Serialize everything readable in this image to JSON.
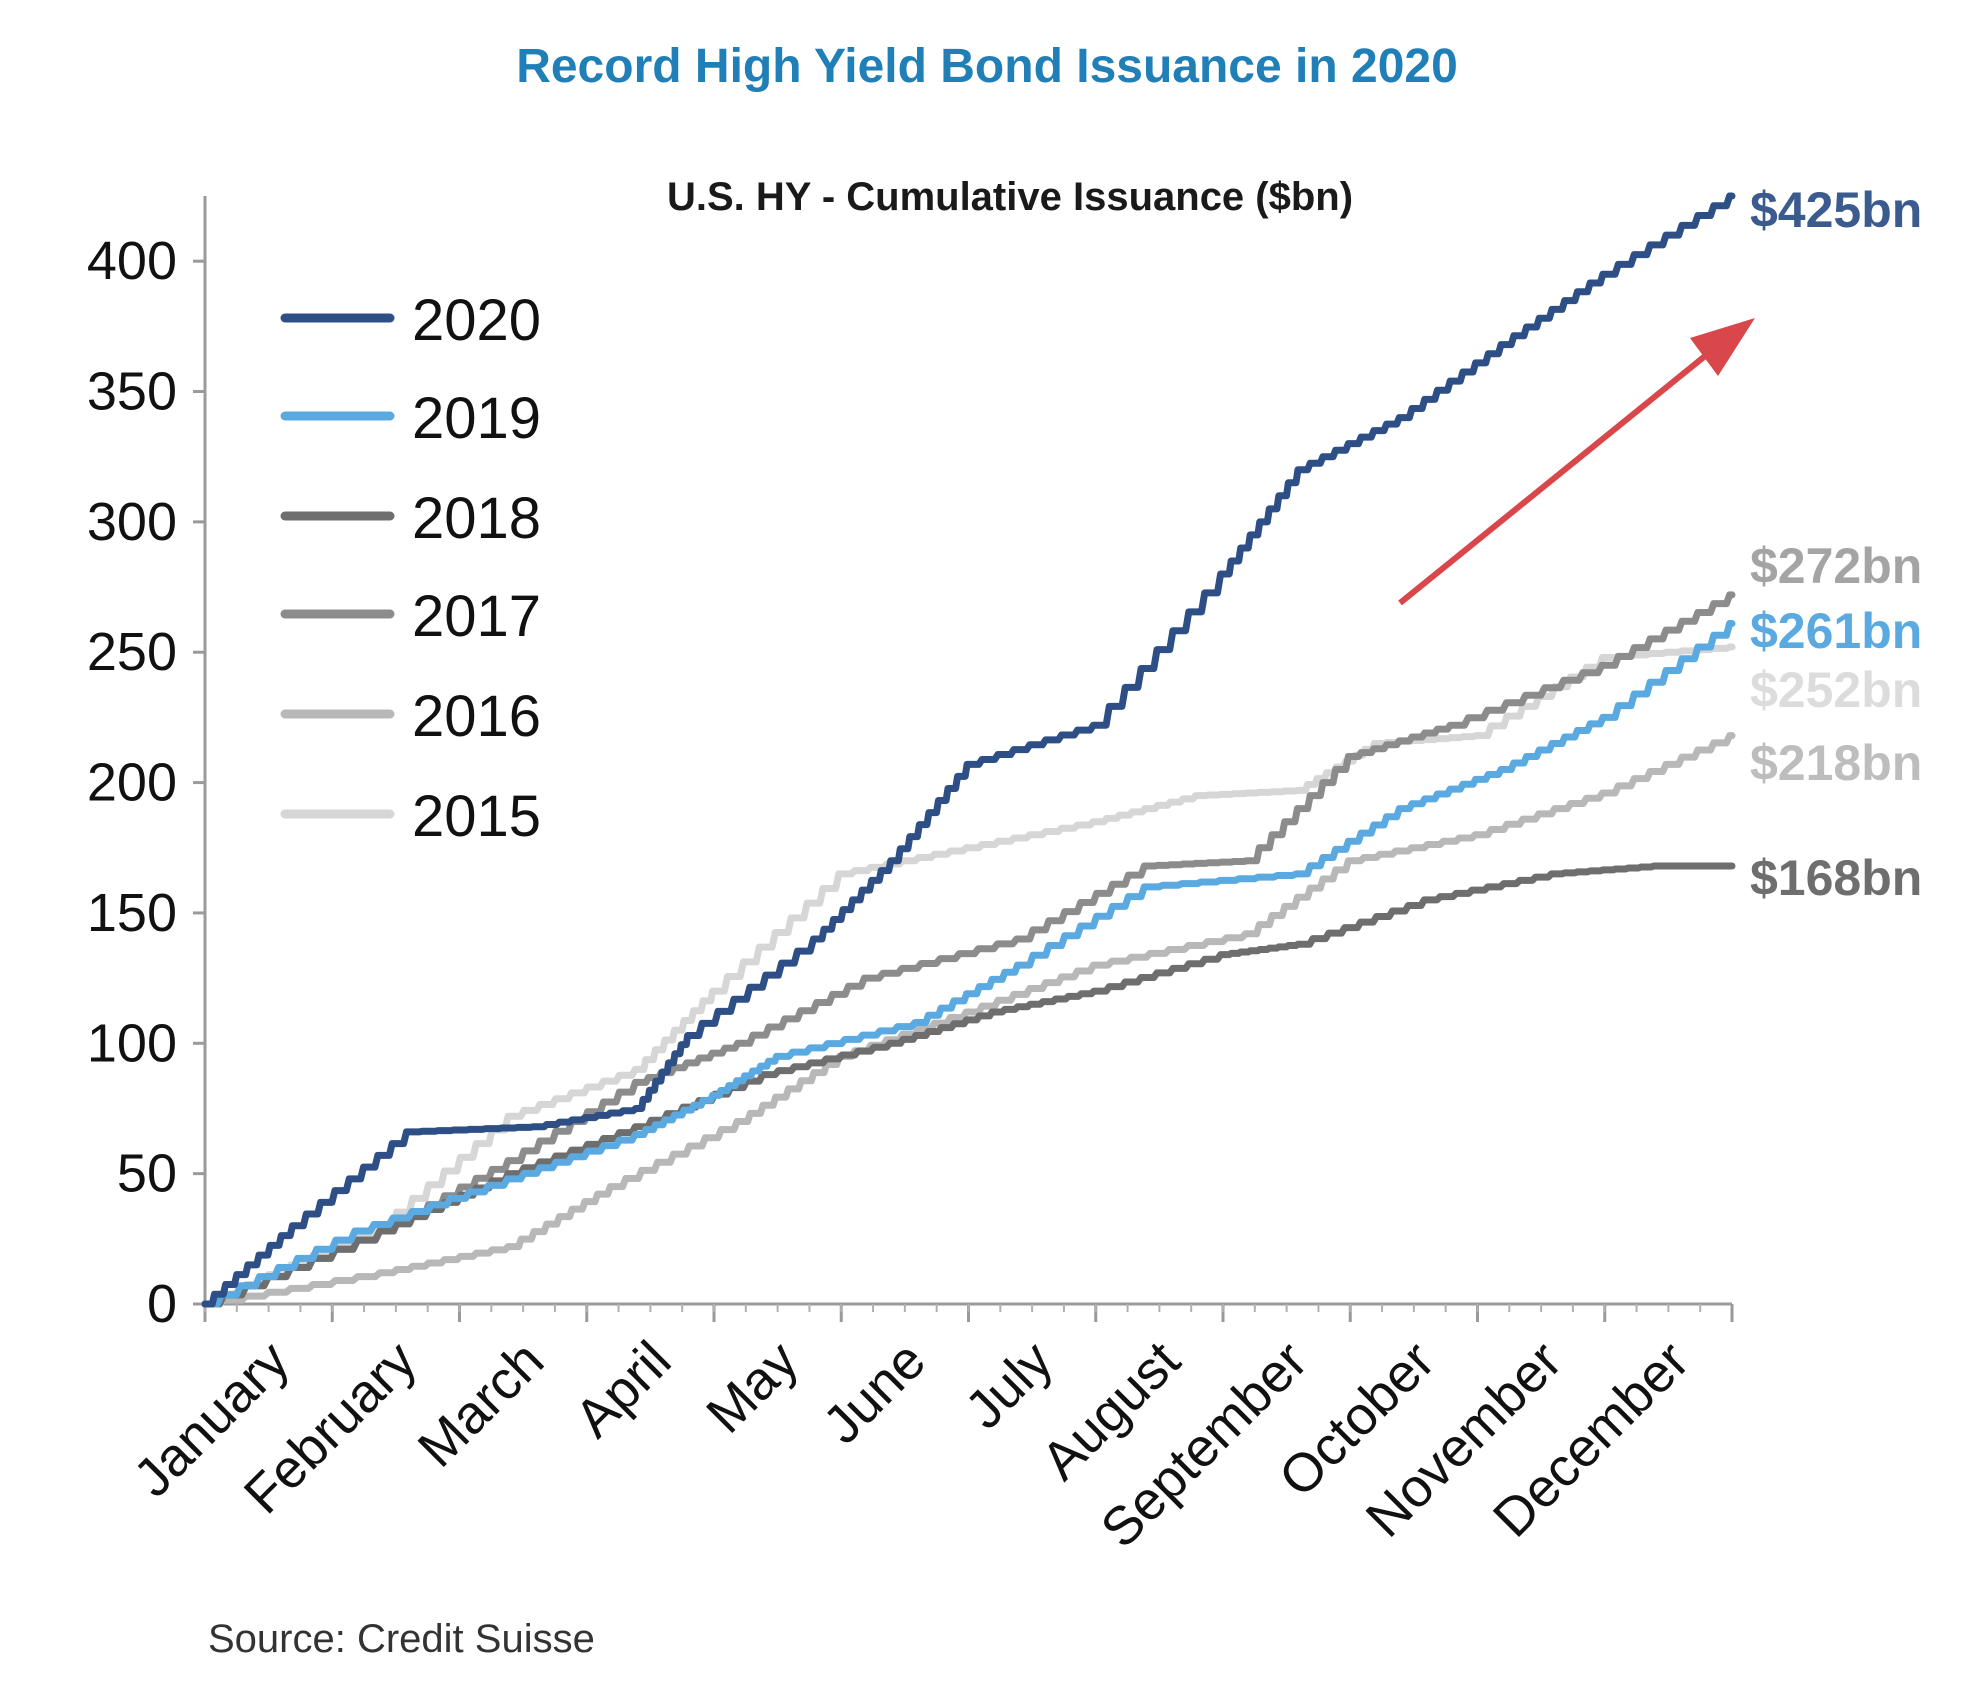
{
  "chart_data": {
    "type": "line",
    "title": "Record High Yield Bond Issuance in 2020",
    "subtitle": "U.S. HY - Cumulative Issuance ($bn)",
    "source": "Source: Credit Suisse",
    "xlabel": "",
    "ylabel": "",
    "ylim": [
      0,
      425
    ],
    "yticks": [
      0,
      50,
      100,
      150,
      200,
      250,
      300,
      350,
      400
    ],
    "categories": [
      "January",
      "February",
      "March",
      "April",
      "May",
      "June",
      "July",
      "August",
      "September",
      "October",
      "November",
      "December"
    ],
    "grid": false,
    "legend_position": "top-left",
    "annotation_arrow": "up-right red arrow",
    "series": [
      {
        "name": "2020",
        "color": "#2d4f86",
        "end_label": "$425bn",
        "values": [
          0,
          30,
          66,
          68,
          75,
          103,
          140,
          170,
          207,
          222,
          280,
          320,
          340,
          368,
          395,
          425
        ],
        "x": [
          0,
          0.7,
          1.6,
          2.6,
          3.4,
          3.8,
          4.8,
          5.4,
          6.0,
          7.0,
          8.0,
          8.6,
          9.4,
          10.2,
          11.0,
          12.0
        ]
      },
      {
        "name": "2019",
        "color": "#5aa9e0",
        "end_label": "$261bn",
        "values": [
          0,
          28,
          48,
          65,
          80,
          95,
          108,
          130,
          160,
          165,
          190,
          205,
          225,
          261
        ],
        "x": [
          0,
          1.2,
          2.4,
          3.4,
          4.0,
          4.5,
          5.6,
          6.4,
          7.4,
          8.6,
          9.4,
          10.2,
          11.0,
          12.0
        ]
      },
      {
        "name": "2018",
        "color": "#6e6e6e",
        "end_label": "$168bn",
        "values": [
          0,
          28,
          50,
          68,
          88,
          100,
          112,
          120,
          134,
          138,
          155,
          165,
          168,
          168
        ],
        "x": [
          0,
          1.4,
          2.4,
          3.4,
          4.4,
          5.4,
          6.2,
          7.0,
          8.0,
          8.6,
          9.6,
          10.6,
          11.4,
          12.0
        ]
      },
      {
        "name": "2017",
        "color": "#8c8c8c",
        "end_label": "$272bn",
        "values": [
          0,
          28,
          55,
          85,
          100,
          125,
          140,
          168,
          170,
          210,
          222,
          245,
          272
        ],
        "x": [
          0,
          1.4,
          2.4,
          3.4,
          4.2,
          5.2,
          6.4,
          7.4,
          8.2,
          9.0,
          9.8,
          11.0,
          12.0
        ]
      },
      {
        "name": "2016",
        "color": "#b8b8b8",
        "end_label": "$218bn",
        "values": [
          0,
          12,
          22,
          45,
          70,
          95,
          112,
          130,
          142,
          170,
          180,
          196,
          218
        ],
        "x": [
          0,
          1.4,
          2.4,
          3.2,
          4.2,
          5.0,
          6.0,
          7.0,
          8.2,
          9.0,
          10.0,
          11.0,
          12.0
        ]
      },
      {
        "name": "2015",
        "color": "#d6d6d6",
        "end_label": "$252bn",
        "values": [
          0,
          30,
          72,
          90,
          120,
          165,
          175,
          185,
          195,
          197,
          215,
          218,
          248,
          252
        ],
        "x": [
          0,
          1.4,
          2.4,
          3.4,
          4.0,
          5.0,
          6.0,
          7.0,
          7.8,
          8.6,
          9.2,
          10.0,
          11.0,
          12.0
        ]
      }
    ]
  }
}
